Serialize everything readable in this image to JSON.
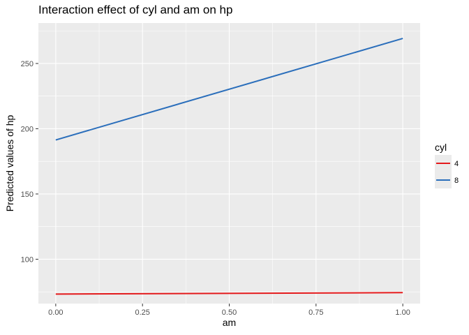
{
  "chart_data": {
    "type": "line",
    "title": "Interaction effect of cyl and am on hp",
    "xlabel": "am",
    "ylabel": "Predicted values of hp",
    "xlim": [
      -0.05,
      1.05
    ],
    "ylim": [
      66,
      281
    ],
    "x_ticks": [
      0.0,
      0.25,
      0.5,
      0.75,
      1.0
    ],
    "x_tick_labels": [
      "0.00",
      "0.25",
      "0.50",
      "0.75",
      "1.00"
    ],
    "y_ticks": [
      100,
      150,
      200,
      250
    ],
    "y_tick_labels": [
      "100",
      "150",
      "200",
      "250"
    ],
    "grid": true,
    "legend": {
      "title": "cyl",
      "placement": "right"
    },
    "series": [
      {
        "name": "4",
        "color": "#e41a1c",
        "x": [
          0,
          1
        ],
        "y": [
          73.3,
          74.4
        ]
      },
      {
        "name": "8",
        "color": "#2a6ebb",
        "x": [
          0,
          1
        ],
        "y": [
          191.4,
          269.2
        ]
      }
    ]
  }
}
